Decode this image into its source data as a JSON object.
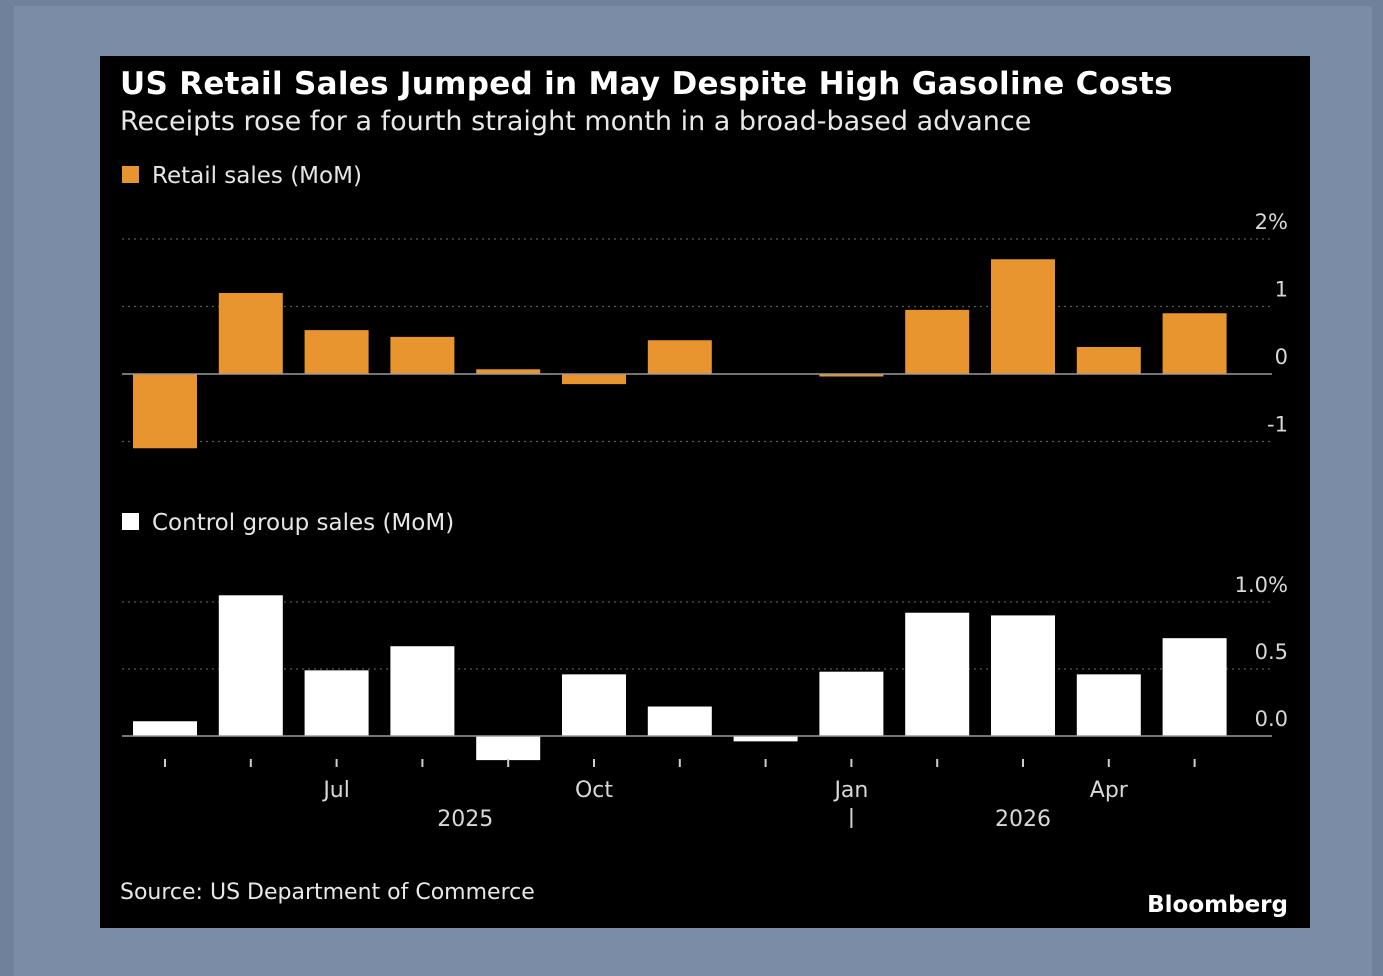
{
  "title": "US Retail Sales Jumped in May Despite High Gasoline Costs",
  "subtitle": "Receipts rose for a fourth straight month in a broad-based advance",
  "source": "Source: US Department of Commerce",
  "brand": "Bloomberg",
  "colors": {
    "background": "#000000",
    "frame": "#7a8ca6",
    "retail": "#e8952f",
    "control": "#ffffff",
    "text": "#ffffff",
    "grid": "#5a5a5a"
  },
  "chart_data": [
    {
      "type": "bar",
      "legend": "Retail sales (MoM)",
      "categories": [
        "May 2025",
        "Jun 2025",
        "Jul 2025",
        "Aug 2025",
        "Sep 2025",
        "Oct 2025",
        "Nov 2025",
        "Dec 2025",
        "Jan 2026",
        "Feb 2026",
        "Mar 2026",
        "Apr 2026",
        "May 2026"
      ],
      "values": [
        -1.1,
        1.2,
        0.65,
        0.55,
        0.07,
        -0.15,
        0.5,
        null,
        -0.02,
        0.95,
        1.7,
        0.4,
        0.9
      ],
      "yticks": [
        {
          "v": 2,
          "label": "2%"
        },
        {
          "v": 1,
          "label": "1"
        },
        {
          "v": 0,
          "label": "0"
        },
        {
          "v": -1,
          "label": "-1"
        }
      ],
      "ylim": [
        -1.2,
        2.3
      ],
      "grid": true,
      "legend_position": "top-left",
      "color": "#e8952f"
    },
    {
      "type": "bar",
      "legend": "Control group sales (MoM)",
      "categories": [
        "May 2025",
        "Jun 2025",
        "Jul 2025",
        "Aug 2025",
        "Sep 2025",
        "Oct 2025",
        "Nov 2025",
        "Dec 2025",
        "Jan 2026",
        "Feb 2026",
        "Mar 2026",
        "Apr 2026",
        "May 2026"
      ],
      "values": [
        0.11,
        1.05,
        0.49,
        0.67,
        -0.18,
        0.46,
        0.22,
        -0.04,
        0.48,
        0.92,
        0.9,
        0.46,
        0.73
      ],
      "yticks": [
        {
          "v": 1.0,
          "label": "1.0%"
        },
        {
          "v": 0.5,
          "label": "0.5"
        },
        {
          "v": 0.0,
          "label": "0.0"
        }
      ],
      "ylim": [
        -0.25,
        1.2
      ],
      "grid": true,
      "legend_position": "top-left",
      "color": "#ffffff"
    }
  ],
  "x_axis": {
    "month_labels": [
      {
        "index": 2,
        "label": "Jul"
      },
      {
        "index": 5,
        "label": "Oct"
      },
      {
        "index": 8,
        "label": "Jan"
      },
      {
        "index": 11,
        "label": "Apr"
      }
    ],
    "year_labels": [
      {
        "label": "2025"
      },
      {
        "label": "2026"
      }
    ]
  }
}
